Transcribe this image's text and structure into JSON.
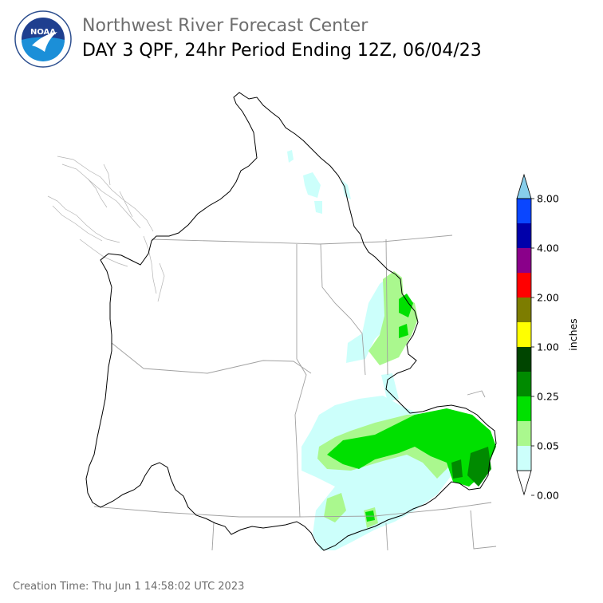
{
  "header": {
    "agency": "Northwest River Forecast Center",
    "product": "DAY 3 QPF, 24hr Period Ending 12Z, 06/04/23"
  },
  "logo": {
    "text": "NOAA",
    "ring_text": "NATIONAL OCEANIC AND ATMOSPHERIC ADMINISTRATION · U.S. DEPARTMENT OF COMMERCE"
  },
  "colorbar": {
    "unit_label": "inches",
    "ticks": [
      "8.00",
      "4.00",
      "2.00",
      "1.00",
      "0.25",
      "0.05",
      "0.00"
    ],
    "bins": [
      {
        "range": "0.00-0.01",
        "color": "#ffffff"
      },
      {
        "range": "0.01-0.05",
        "color": "#ccfffb"
      },
      {
        "range": "0.05-0.10",
        "color": "#aaf88e"
      },
      {
        "range": "0.10-0.25",
        "color": "#00e000"
      },
      {
        "range": "0.25-0.50",
        "color": "#008a00"
      },
      {
        "range": "0.50-1.00",
        "color": "#004500"
      },
      {
        "range": "1.00-1.50",
        "color": "#ffff00"
      },
      {
        "range": "1.50-2.00",
        "color": "#7d7d00"
      },
      {
        "range": "2.00-3.00",
        "color": "#ff0000"
      },
      {
        "range": "3.00-4.00",
        "color": "#8a008a"
      },
      {
        "range": "4.00-6.00",
        "color": "#0000aa"
      },
      {
        "range": "6.00-8.00",
        "color": "#0a46ff"
      },
      {
        "range": ">8.00",
        "color": "#87ceeb"
      }
    ]
  },
  "footer": {
    "creation_time": "Creation Time: Thu Jun 1 14:58:02 UTC 2023"
  }
}
